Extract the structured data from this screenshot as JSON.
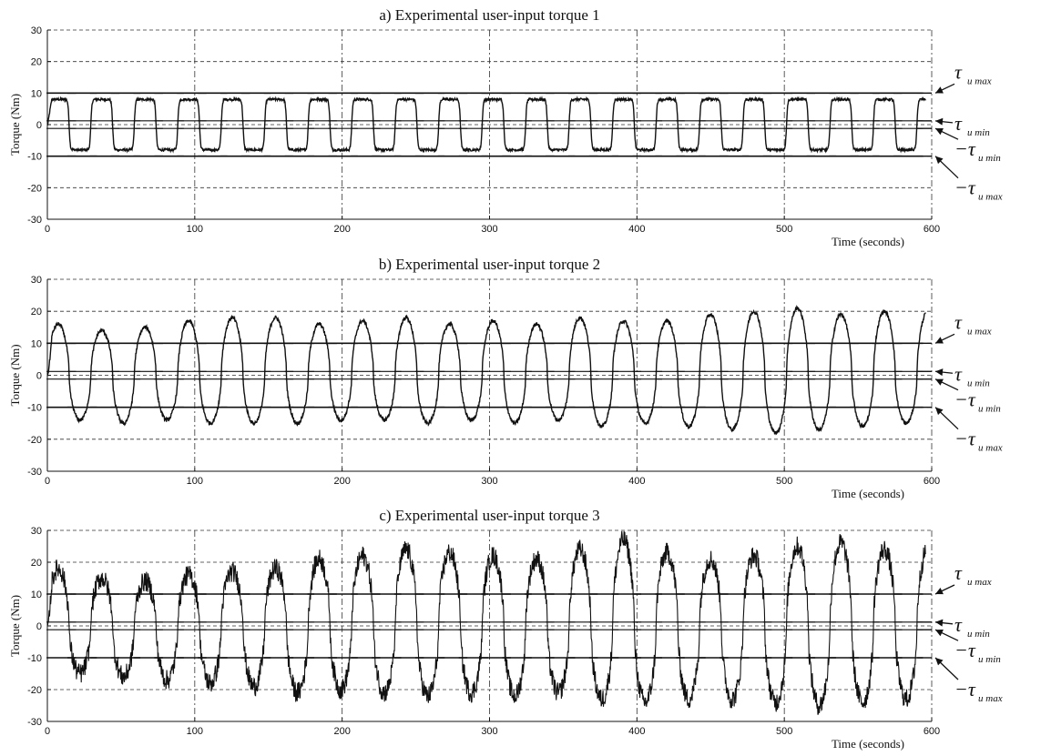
{
  "chart_data": [
    {
      "type": "line",
      "title": "a) Experimental user-input torque 1",
      "xlabel": "Time (seconds)",
      "ylabel": "Torque (Nm)",
      "xlim": [
        0,
        600
      ],
      "ylim": [
        -30,
        30
      ],
      "xticks": [
        0,
        100,
        200,
        300,
        400,
        500,
        600
      ],
      "yticks": [
        -30,
        -20,
        -10,
        0,
        10,
        20,
        30
      ],
      "grid": true,
      "signal": {
        "period_s": 29.5,
        "peak_values": [
          8,
          8,
          8,
          8,
          8,
          8,
          8,
          8,
          8,
          8,
          8,
          8,
          8,
          8,
          8,
          8,
          8,
          8,
          8,
          8
        ],
        "trough_values": [
          -8,
          -8,
          -8,
          -8,
          -8,
          -8,
          -8,
          -8,
          -8,
          -8,
          -8,
          -8,
          -8,
          -8,
          -8,
          -8,
          -8,
          -8,
          -8,
          -8
        ],
        "noise_nm": 0.4
      },
      "thresholds": [
        {
          "value": 10,
          "label": "τ",
          "sub": "u max"
        },
        {
          "value": 1.2,
          "label": "τ",
          "sub": "u min"
        },
        {
          "value": -1.2,
          "label": "−τ",
          "sub": "u min"
        },
        {
          "value": -10,
          "label": "−τ",
          "sub": "u max"
        }
      ]
    },
    {
      "type": "line",
      "title": "b) Experimental user-input torque 2",
      "xlabel": "Time (seconds)",
      "ylabel": "Torque (Nm)",
      "xlim": [
        0,
        600
      ],
      "ylim": [
        -30,
        30
      ],
      "xticks": [
        0,
        100,
        200,
        300,
        400,
        500,
        600
      ],
      "yticks": [
        -30,
        -20,
        -10,
        0,
        10,
        20,
        30
      ],
      "grid": true,
      "signal": {
        "period_s": 29.5,
        "peak_values": [
          16,
          14,
          15,
          17,
          18,
          18,
          16,
          17,
          18,
          16,
          17,
          16,
          18,
          17,
          17,
          19,
          20,
          21,
          19,
          20
        ],
        "trough_values": [
          -14,
          -15,
          -14,
          -15,
          -15,
          -15,
          -14,
          -14,
          -15,
          -14,
          -15,
          -14,
          -16,
          -15,
          -16,
          -17,
          -18,
          -17,
          -16,
          -15
        ],
        "noise_nm": 0.6
      },
      "thresholds": [
        {
          "value": 10,
          "label": "τ",
          "sub": "u max"
        },
        {
          "value": 1.2,
          "label": "τ",
          "sub": "u min"
        },
        {
          "value": -1.2,
          "label": "−τ",
          "sub": "u min"
        },
        {
          "value": -10,
          "label": "−τ",
          "sub": "u max"
        }
      ]
    },
    {
      "type": "line",
      "title": "c) Experimental user-input torque 3",
      "xlabel": "Time (seconds)",
      "ylabel": "Torque (Nm)",
      "xlim": [
        0,
        600
      ],
      "ylim": [
        -30,
        30
      ],
      "xticks": [
        0,
        100,
        200,
        300,
        400,
        500,
        600
      ],
      "yticks": [
        -30,
        -20,
        -10,
        0,
        10,
        20,
        30
      ],
      "grid": true,
      "signal": {
        "period_s": 29.5,
        "peak_values": [
          18,
          15,
          14,
          16,
          17,
          18,
          21,
          22,
          24,
          23,
          22,
          21,
          24,
          27,
          23,
          21,
          22,
          25,
          26,
          24
        ],
        "trough_values": [
          -15,
          -16,
          -17,
          -18,
          -19,
          -21,
          -20,
          -21,
          -22,
          -21,
          -22,
          -21,
          -23,
          -24,
          -23,
          -23,
          -24,
          -25,
          -24,
          -23
        ],
        "noise_nm": 3.2
      },
      "thresholds": [
        {
          "value": 10,
          "label": "τ",
          "sub": "u max"
        },
        {
          "value": 1.2,
          "label": "τ",
          "sub": "u min"
        },
        {
          "value": -1.2,
          "label": "−τ",
          "sub": "u min"
        },
        {
          "value": -10,
          "label": "−τ",
          "sub": "u max"
        }
      ]
    }
  ]
}
